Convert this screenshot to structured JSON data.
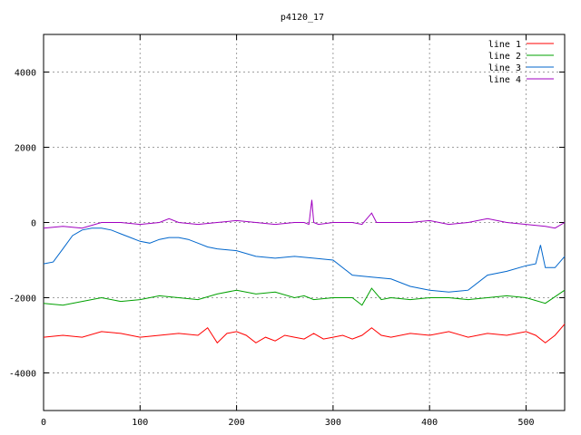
{
  "chart_data": {
    "type": "line",
    "title": "p4120_17",
    "xlabel": "",
    "ylabel": "",
    "xlim": [
      0,
      540
    ],
    "ylim": [
      -5000,
      5000
    ],
    "xticks": [
      0,
      100,
      200,
      300,
      400,
      500
    ],
    "yticks": [
      -4000,
      -2000,
      0,
      2000,
      4000
    ],
    "grid": true,
    "legend_position": "top-right",
    "series": [
      {
        "name": "line 1",
        "color": "#ff0000",
        "x": [
          0,
          20,
          40,
          60,
          80,
          100,
          120,
          140,
          160,
          170,
          175,
          180,
          190,
          200,
          210,
          220,
          230,
          240,
          250,
          260,
          270,
          280,
          290,
          300,
          310,
          320,
          330,
          340,
          350,
          360,
          380,
          400,
          420,
          440,
          460,
          480,
          500,
          510,
          520,
          530,
          540
        ],
        "y": [
          -3050,
          -3000,
          -3050,
          -2900,
          -2950,
          -3050,
          -3000,
          -2950,
          -3000,
          -2800,
          -3000,
          -3200,
          -2950,
          -2900,
          -3000,
          -3200,
          -3050,
          -3150,
          -3000,
          -3050,
          -3100,
          -2950,
          -3100,
          -3050,
          -3000,
          -3100,
          -3000,
          -2800,
          -3000,
          -3050,
          -2950,
          -3000,
          -2900,
          -3050,
          -2950,
          -3000,
          -2900,
          -3000,
          -3200,
          -3000,
          -2700
        ]
      },
      {
        "name": "line 2",
        "color": "#00a000",
        "x": [
          0,
          20,
          40,
          60,
          80,
          100,
          120,
          140,
          160,
          180,
          200,
          220,
          240,
          260,
          270,
          280,
          300,
          320,
          330,
          340,
          350,
          360,
          380,
          400,
          420,
          440,
          460,
          480,
          500,
          520,
          540
        ],
        "y": [
          -2150,
          -2200,
          -2100,
          -2000,
          -2100,
          -2050,
          -1950,
          -2000,
          -2050,
          -1900,
          -1800,
          -1900,
          -1850,
          -2000,
          -1950,
          -2050,
          -2000,
          -2000,
          -2200,
          -1750,
          -2050,
          -2000,
          -2050,
          -2000,
          -2000,
          -2050,
          -2000,
          -1950,
          -2000,
          -2150,
          -1800
        ]
      },
      {
        "name": "line 3",
        "color": "#0066cc",
        "x": [
          0,
          10,
          20,
          30,
          40,
          50,
          60,
          70,
          80,
          90,
          100,
          110,
          120,
          130,
          140,
          150,
          160,
          170,
          180,
          200,
          220,
          240,
          260,
          280,
          300,
          320,
          340,
          360,
          380,
          400,
          420,
          440,
          460,
          480,
          500,
          510,
          515,
          520,
          530,
          540
        ],
        "y": [
          -1100,
          -1050,
          -700,
          -350,
          -200,
          -150,
          -150,
          -200,
          -300,
          -400,
          -500,
          -550,
          -450,
          -400,
          -400,
          -450,
          -550,
          -650,
          -700,
          -750,
          -900,
          -950,
          -900,
          -950,
          -1000,
          -1400,
          -1450,
          -1500,
          -1700,
          -1800,
          -1850,
          -1800,
          -1400,
          -1300,
          -1150,
          -1100,
          -600,
          -1200,
          -1200,
          -900
        ]
      },
      {
        "name": "line 4",
        "color": "#a000c0",
        "x": [
          0,
          20,
          40,
          60,
          80,
          100,
          120,
          130,
          140,
          160,
          180,
          200,
          220,
          240,
          260,
          270,
          275,
          278,
          280,
          285,
          300,
          320,
          330,
          340,
          345,
          360,
          380,
          400,
          420,
          440,
          460,
          480,
          500,
          520,
          530,
          540
        ],
        "y": [
          -150,
          -100,
          -150,
          0,
          0,
          -50,
          0,
          100,
          0,
          -50,
          0,
          50,
          0,
          -50,
          0,
          0,
          -50,
          600,
          0,
          -50,
          0,
          0,
          -50,
          250,
          0,
          0,
          0,
          50,
          -50,
          0,
          100,
          0,
          -50,
          -100,
          -150,
          0
        ]
      }
    ]
  }
}
